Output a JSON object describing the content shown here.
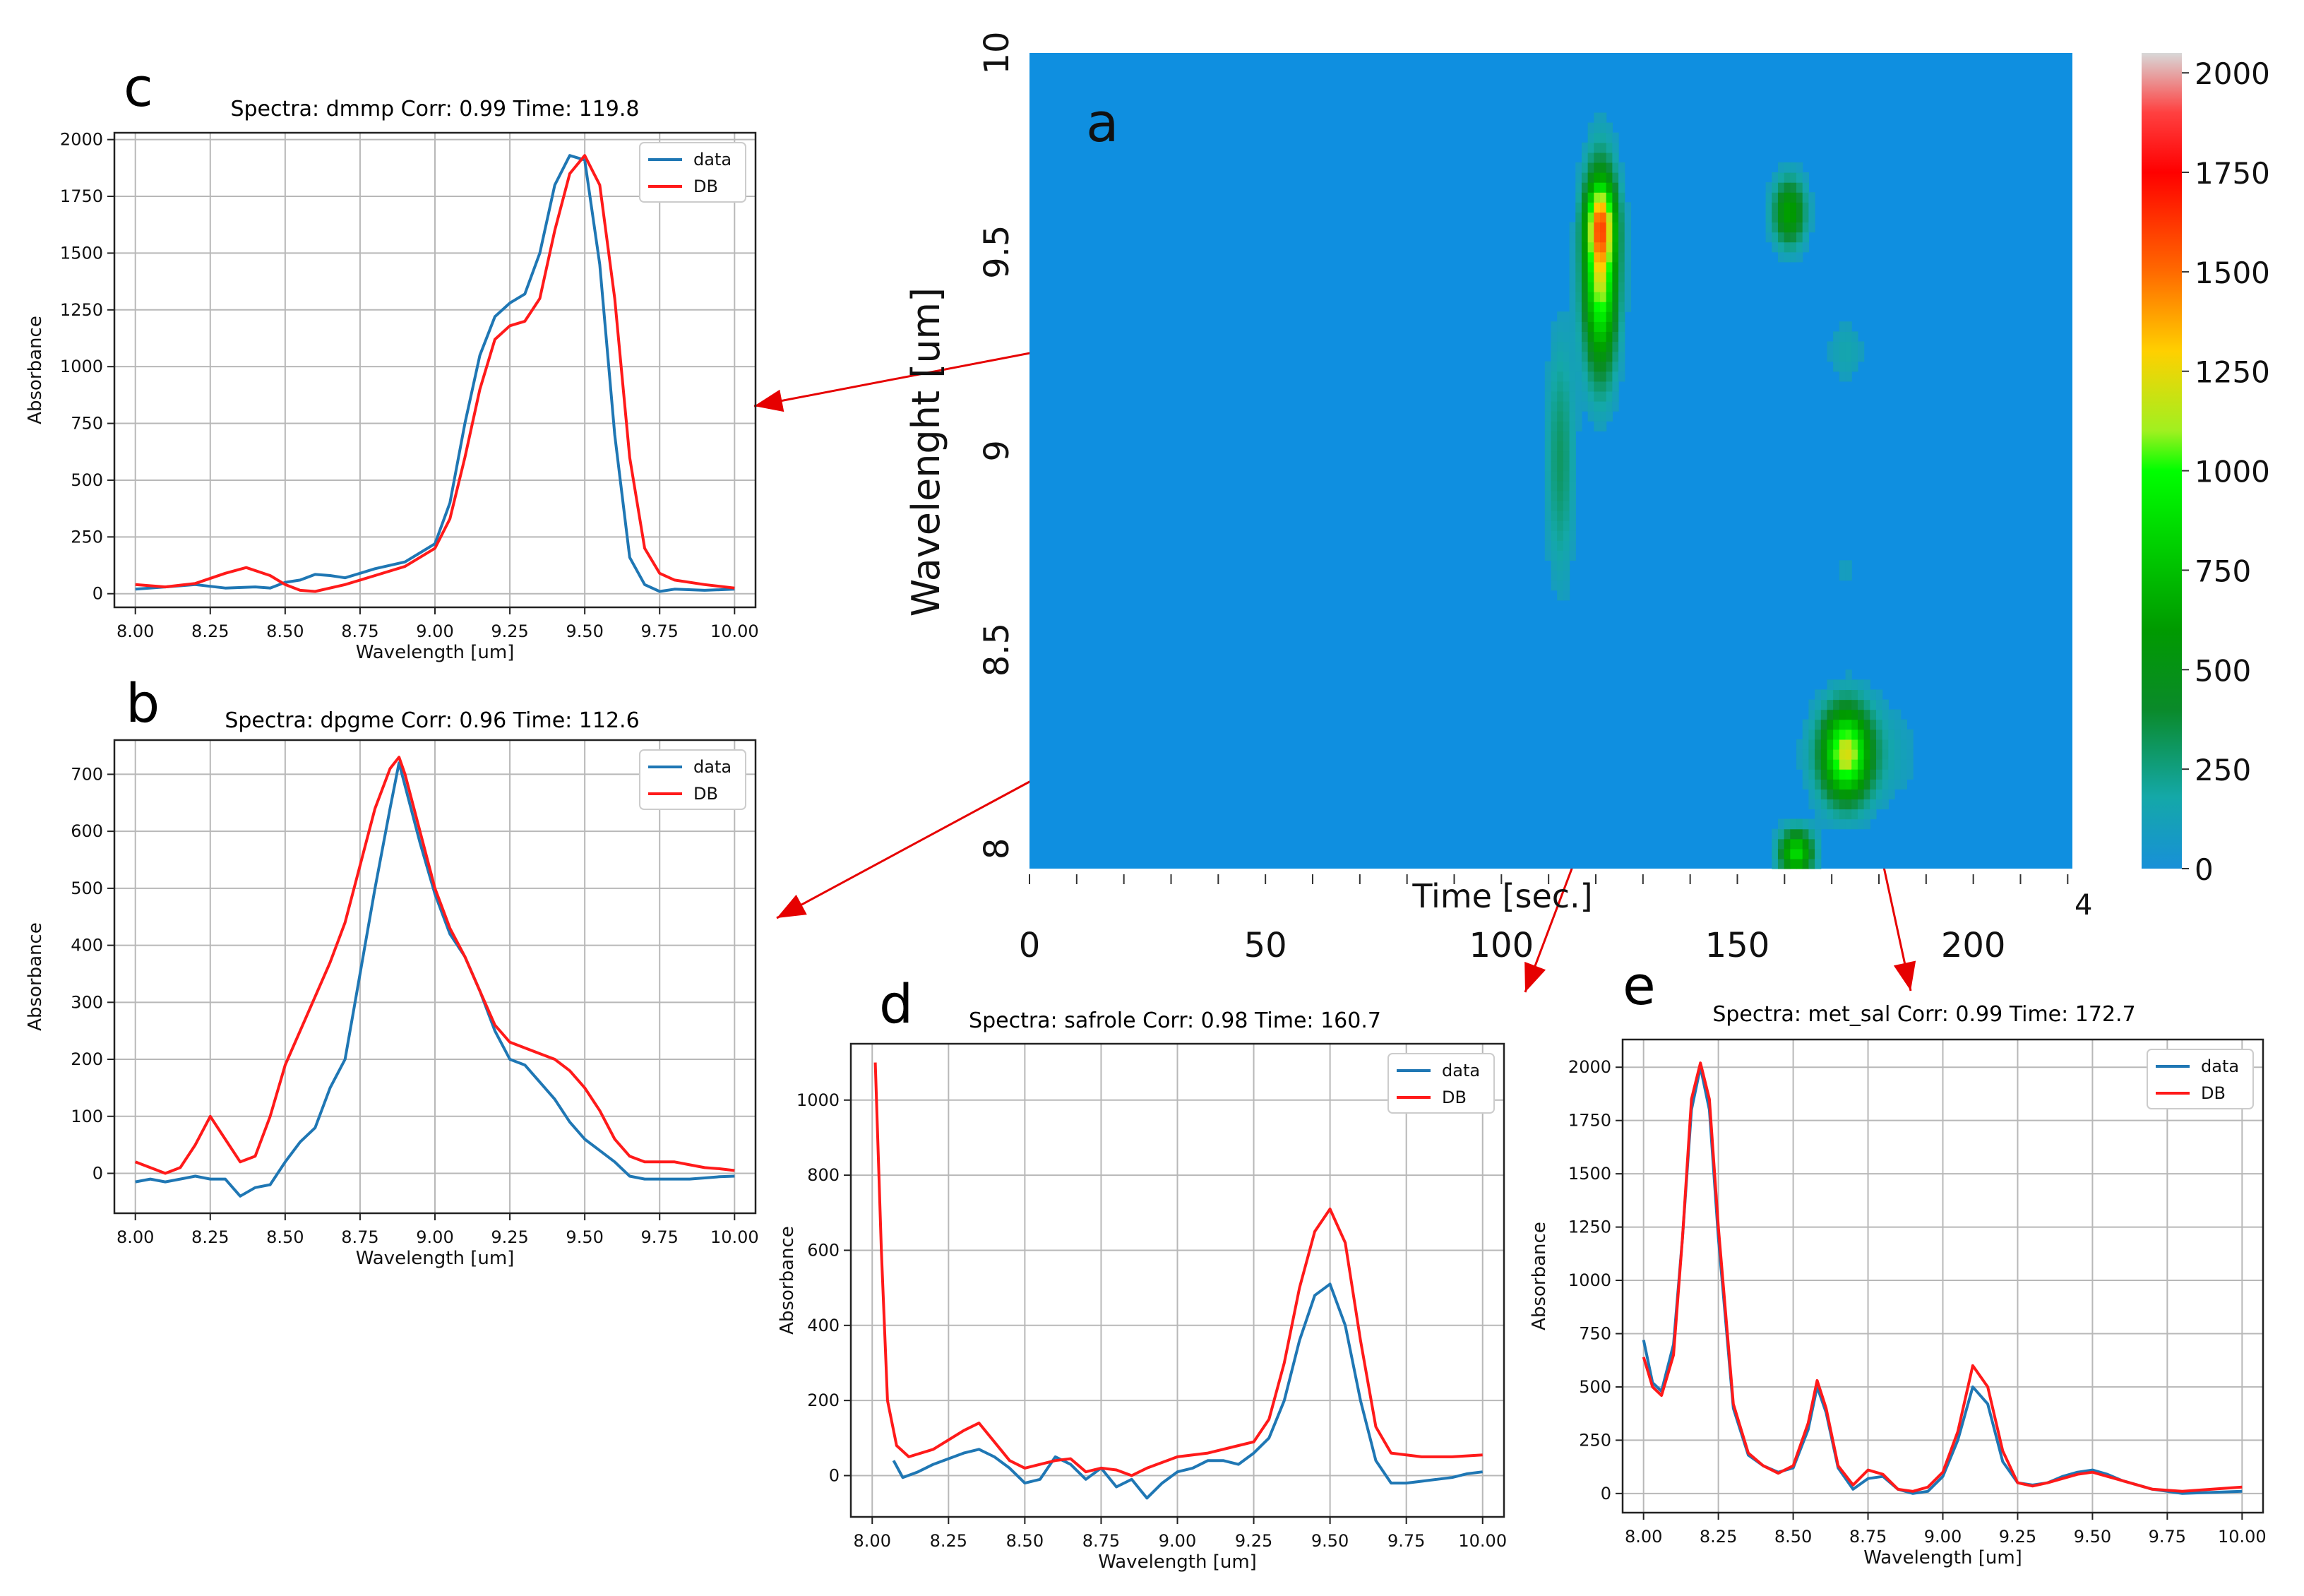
{
  "panels": {
    "c": {
      "letter": "c",
      "title": "Spectra: dmmp Corr: 0.99 Time: 119.8"
    },
    "b": {
      "letter": "b",
      "title": "Spectra: dpgme Corr: 0.96 Time: 112.6"
    },
    "d": {
      "letter": "d",
      "title": "Spectra: safrole Corr: 0.98 Time: 160.7"
    },
    "e": {
      "letter": "e",
      "title": "Spectra: met_sal Corr: 0.99 Time: 172.7"
    },
    "a": {
      "letter": "a"
    }
  },
  "heatmap": {
    "ylabel": "Wavelenght  [um]",
    "xlabel": "Time [sec.]",
    "stray_label": "4"
  },
  "colors": {
    "data": "#1f77b4",
    "db": "#ff1a1a",
    "arrow": "#e60000",
    "heatmap_bg": "#0f8fe0"
  },
  "chart_data": [
    {
      "id": "c",
      "type": "line",
      "title": "Spectra: dmmp Corr: 0.99 Time: 119.8",
      "xlabel": "Wavelength [um]",
      "ylabel": "Absorbance",
      "xlim": [
        7.93,
        10.07
      ],
      "ylim": [
        -60,
        2030
      ],
      "xticks": [
        8.0,
        8.25,
        8.5,
        8.75,
        9.0,
        9.25,
        9.5,
        9.75,
        10.0
      ],
      "xtick_labels": [
        "8.00",
        "8.25",
        "8.50",
        "8.75",
        "9.00",
        "9.25",
        "9.50",
        "9.75",
        "10.00"
      ],
      "yticks": [
        0,
        250,
        500,
        750,
        1000,
        1250,
        1500,
        1750,
        2000
      ],
      "legend_position": "upper right",
      "series": [
        {
          "name": "data",
          "color": "#1f77b4",
          "x": [
            8.0,
            8.1,
            8.15,
            8.2,
            8.3,
            8.4,
            8.45,
            8.5,
            8.55,
            8.6,
            8.65,
            8.7,
            8.75,
            8.8,
            8.9,
            9.0,
            9.05,
            9.1,
            9.15,
            9.2,
            9.25,
            9.3,
            9.35,
            9.4,
            9.45,
            9.5,
            9.55,
            9.6,
            9.65,
            9.7,
            9.75,
            9.8,
            9.9,
            10.0
          ],
          "y": [
            20,
            30,
            35,
            40,
            25,
            30,
            25,
            50,
            60,
            85,
            80,
            70,
            90,
            110,
            140,
            220,
            400,
            750,
            1050,
            1220,
            1280,
            1320,
            1500,
            1800,
            1930,
            1910,
            1450,
            700,
            160,
            40,
            10,
            20,
            15,
            20
          ]
        },
        {
          "name": "DB",
          "color": "#ff1a1a",
          "x": [
            8.0,
            8.1,
            8.2,
            8.3,
            8.37,
            8.45,
            8.5,
            8.55,
            8.6,
            8.7,
            8.8,
            8.9,
            9.0,
            9.05,
            9.1,
            9.15,
            9.2,
            9.25,
            9.3,
            9.35,
            9.4,
            9.45,
            9.5,
            9.55,
            9.6,
            9.65,
            9.7,
            9.75,
            9.8,
            9.9,
            10.0
          ],
          "y": [
            40,
            30,
            45,
            90,
            115,
            80,
            40,
            15,
            10,
            40,
            80,
            120,
            200,
            330,
            600,
            900,
            1120,
            1180,
            1200,
            1300,
            1600,
            1850,
            1930,
            1800,
            1300,
            600,
            200,
            90,
            60,
            40,
            25
          ]
        }
      ]
    },
    {
      "id": "b",
      "type": "line",
      "title": "Spectra: dpgme Corr: 0.96 Time: 112.6",
      "xlabel": "Wavelength [um]",
      "ylabel": "Absorbance",
      "xlim": [
        7.93,
        10.07
      ],
      "ylim": [
        -70,
        760
      ],
      "xticks": [
        8.0,
        8.25,
        8.5,
        8.75,
        9.0,
        9.25,
        9.5,
        9.75,
        10.0
      ],
      "xtick_labels": [
        "8.00",
        "8.25",
        "8.50",
        "8.75",
        "9.00",
        "9.25",
        "9.50",
        "9.75",
        "10.00"
      ],
      "yticks": [
        0,
        100,
        200,
        300,
        400,
        500,
        600,
        700
      ],
      "legend_position": "upper right",
      "series": [
        {
          "name": "data",
          "color": "#1f77b4",
          "x": [
            8.0,
            8.05,
            8.1,
            8.15,
            8.2,
            8.25,
            8.3,
            8.35,
            8.4,
            8.45,
            8.5,
            8.55,
            8.6,
            8.65,
            8.7,
            8.75,
            8.8,
            8.85,
            8.88,
            8.9,
            8.95,
            9.0,
            9.05,
            9.1,
            9.15,
            9.2,
            9.25,
            9.3,
            9.35,
            9.4,
            9.45,
            9.5,
            9.55,
            9.6,
            9.65,
            9.7,
            9.75,
            9.8,
            9.85,
            9.9,
            9.95,
            10.0
          ],
          "y": [
            -15,
            -10,
            -15,
            -10,
            -5,
            -10,
            -10,
            -40,
            -25,
            -20,
            20,
            55,
            80,
            150,
            200,
            350,
            500,
            640,
            720,
            680,
            580,
            490,
            420,
            380,
            320,
            250,
            200,
            190,
            160,
            130,
            90,
            60,
            40,
            20,
            -5,
            -10,
            -10,
            -10,
            -10,
            -8,
            -6,
            -5
          ]
        },
        {
          "name": "DB",
          "color": "#ff1a1a",
          "x": [
            8.0,
            8.05,
            8.1,
            8.15,
            8.2,
            8.25,
            8.3,
            8.35,
            8.4,
            8.45,
            8.5,
            8.55,
            8.6,
            8.65,
            8.7,
            8.75,
            8.8,
            8.85,
            8.88,
            8.9,
            8.95,
            9.0,
            9.05,
            9.1,
            9.15,
            9.2,
            9.25,
            9.3,
            9.35,
            9.4,
            9.45,
            9.5,
            9.55,
            9.6,
            9.65,
            9.7,
            9.75,
            9.8,
            9.85,
            9.9,
            9.95,
            10.0
          ],
          "y": [
            20,
            10,
            0,
            10,
            50,
            100,
            60,
            20,
            30,
            100,
            190,
            250,
            310,
            370,
            440,
            540,
            640,
            710,
            730,
            700,
            600,
            500,
            430,
            380,
            320,
            260,
            230,
            220,
            210,
            200,
            180,
            150,
            110,
            60,
            30,
            20,
            20,
            20,
            15,
            10,
            8,
            5
          ]
        }
      ]
    },
    {
      "id": "d",
      "type": "line",
      "title": "Spectra: safrole Corr: 0.98 Time: 160.7",
      "xlabel": "Wavelength [um]",
      "ylabel": "Absorbance",
      "xlim": [
        7.93,
        10.07
      ],
      "ylim": [
        -110,
        1150
      ],
      "xticks": [
        8.0,
        8.25,
        8.5,
        8.75,
        9.0,
        9.25,
        9.5,
        9.75,
        10.0
      ],
      "xtick_labels": [
        "8.00",
        "8.25",
        "8.50",
        "8.75",
        "9.00",
        "9.25",
        "9.50",
        "9.75",
        "10.00"
      ],
      "yticks": [
        0,
        200,
        400,
        600,
        800,
        1000
      ],
      "legend_position": "upper right",
      "series": [
        {
          "name": "data",
          "color": "#1f77b4",
          "x": [
            8.07,
            8.1,
            8.15,
            8.2,
            8.3,
            8.35,
            8.4,
            8.45,
            8.5,
            8.55,
            8.6,
            8.65,
            8.7,
            8.75,
            8.8,
            8.85,
            8.9,
            8.95,
            9.0,
            9.05,
            9.1,
            9.15,
            9.2,
            9.25,
            9.3,
            9.35,
            9.4,
            9.45,
            9.5,
            9.55,
            9.6,
            9.65,
            9.7,
            9.75,
            9.8,
            9.85,
            9.9,
            9.95,
            10.0
          ],
          "y": [
            40,
            -5,
            10,
            30,
            60,
            70,
            50,
            20,
            -20,
            -10,
            50,
            30,
            -10,
            20,
            -30,
            -10,
            -60,
            -20,
            10,
            20,
            40,
            40,
            30,
            60,
            100,
            200,
            360,
            480,
            510,
            400,
            200,
            40,
            -20,
            -20,
            -15,
            -10,
            -5,
            5,
            10
          ]
        },
        {
          "name": "DB",
          "color": "#ff1a1a",
          "x": [
            8.01,
            8.03,
            8.05,
            8.08,
            8.12,
            8.2,
            8.3,
            8.35,
            8.4,
            8.45,
            8.5,
            8.6,
            8.65,
            8.7,
            8.75,
            8.8,
            8.85,
            8.9,
            9.0,
            9.1,
            9.2,
            9.25,
            9.3,
            9.35,
            9.4,
            9.45,
            9.5,
            9.55,
            9.6,
            9.65,
            9.7,
            9.8,
            9.9,
            10.0
          ],
          "y": [
            1100,
            600,
            200,
            80,
            50,
            70,
            120,
            140,
            90,
            40,
            20,
            40,
            45,
            10,
            20,
            15,
            0,
            20,
            50,
            60,
            80,
            90,
            150,
            300,
            500,
            650,
            710,
            620,
            360,
            130,
            60,
            50,
            50,
            55
          ]
        }
      ]
    },
    {
      "id": "e",
      "type": "line",
      "title": "Spectra: met_sal Corr: 0.99 Time: 172.7",
      "xlabel": "Wavelength [um]",
      "ylabel": "Absorbance",
      "xlim": [
        7.93,
        10.07
      ],
      "ylim": [
        -90,
        2130
      ],
      "xticks": [
        8.0,
        8.25,
        8.5,
        8.75,
        9.0,
        9.25,
        9.5,
        9.75,
        10.0
      ],
      "xtick_labels": [
        "8.00",
        "8.25",
        "8.50",
        "8.75",
        "9.00",
        "9.25",
        "9.50",
        "9.75",
        "10.00"
      ],
      "yticks": [
        0,
        250,
        500,
        750,
        1000,
        1250,
        1500,
        1750,
        2000
      ],
      "legend_position": "upper right",
      "series": [
        {
          "name": "data",
          "color": "#1f77b4",
          "x": [
            8.0,
            8.03,
            8.06,
            8.1,
            8.13,
            8.16,
            8.19,
            8.22,
            8.25,
            8.3,
            8.35,
            8.4,
            8.45,
            8.5,
            8.55,
            8.58,
            8.61,
            8.65,
            8.7,
            8.75,
            8.8,
            8.85,
            8.9,
            8.95,
            9.0,
            9.05,
            9.1,
            9.15,
            9.2,
            9.25,
            9.3,
            9.35,
            9.4,
            9.45,
            9.5,
            9.55,
            9.6,
            9.7,
            9.8,
            9.9,
            10.0
          ],
          "y": [
            720,
            520,
            480,
            700,
            1200,
            1800,
            2000,
            1800,
            1200,
            400,
            180,
            130,
            100,
            120,
            300,
            500,
            380,
            120,
            20,
            70,
            80,
            20,
            0,
            10,
            80,
            250,
            500,
            420,
            150,
            50,
            40,
            50,
            80,
            100,
            110,
            90,
            60,
            20,
            0,
            5,
            10
          ]
        },
        {
          "name": "DB",
          "color": "#ff1a1a",
          "x": [
            8.0,
            8.03,
            8.06,
            8.1,
            8.13,
            8.16,
            8.19,
            8.22,
            8.25,
            8.3,
            8.35,
            8.4,
            8.45,
            8.5,
            8.55,
            8.58,
            8.61,
            8.65,
            8.7,
            8.75,
            8.8,
            8.85,
            8.9,
            8.95,
            9.0,
            9.05,
            9.1,
            9.15,
            9.2,
            9.25,
            9.3,
            9.35,
            9.4,
            9.45,
            9.5,
            9.55,
            9.6,
            9.7,
            9.8,
            9.9,
            10.0
          ],
          "y": [
            640,
            500,
            460,
            650,
            1200,
            1850,
            2020,
            1850,
            1250,
            420,
            190,
            130,
            95,
            130,
            330,
            530,
            400,
            130,
            40,
            110,
            90,
            20,
            10,
            30,
            100,
            290,
            600,
            500,
            200,
            50,
            35,
            50,
            70,
            90,
            100,
            80,
            60,
            20,
            10,
            20,
            30
          ]
        }
      ]
    },
    {
      "id": "a",
      "type": "heatmap",
      "xlabel": "Time [sec.]",
      "ylabel": "Wavelenght  [um]",
      "xlim": [
        0,
        221
      ],
      "ylim": [
        7.95,
        10.0
      ],
      "xticks": [
        0,
        50,
        100,
        150,
        200
      ],
      "yticks": [
        8,
        8.5,
        9,
        9.5,
        10
      ],
      "ytick_labels": [
        "8",
        "8.5",
        "9",
        "9.5",
        "10"
      ],
      "colorbar": {
        "range": [
          0,
          2050
        ],
        "ticks": [
          0,
          250,
          500,
          750,
          1000,
          1250,
          1500,
          1750,
          2000
        ],
        "stops": [
          [
            0,
            "#1890d8"
          ],
          [
            180,
            "#14a8a8"
          ],
          [
            400,
            "#0a8a2a"
          ],
          [
            600,
            "#009a00"
          ],
          [
            1000,
            "#00ff00"
          ],
          [
            1100,
            "#a0f020"
          ],
          [
            1300,
            "#ffd000"
          ],
          [
            1500,
            "#ff6a00"
          ],
          [
            1750,
            "#ff0000"
          ],
          [
            1900,
            "#ff4040"
          ],
          [
            2050,
            "#d8d8d8"
          ]
        ]
      },
      "blobs": [
        {
          "t": 121,
          "w": 9.45,
          "st": 2.5,
          "sw": 0.17,
          "amp": 1150
        },
        {
          "t": 121,
          "w": 9.58,
          "st": 2.2,
          "sw": 0.07,
          "amp": 700
        },
        {
          "t": 112.5,
          "w": 8.98,
          "st": 2.2,
          "sw": 0.22,
          "amp": 280
        },
        {
          "t": 161,
          "w": 9.6,
          "st": 2.5,
          "sw": 0.06,
          "amp": 620
        },
        {
          "t": 173,
          "w": 8.24,
          "st": 3.5,
          "sw": 0.08,
          "amp": 1050
        },
        {
          "t": 176,
          "w": 8.24,
          "st": 9.0,
          "sw": 0.1,
          "amp": 160
        },
        {
          "t": 162.5,
          "w": 7.99,
          "st": 2.5,
          "sw": 0.04,
          "amp": 850
        },
        {
          "t": 173,
          "w": 9.25,
          "st": 3.0,
          "sw": 0.06,
          "amp": 140
        },
        {
          "t": 173,
          "w": 8.7,
          "st": 2.5,
          "sw": 0.05,
          "amp": 80
        }
      ]
    }
  ]
}
